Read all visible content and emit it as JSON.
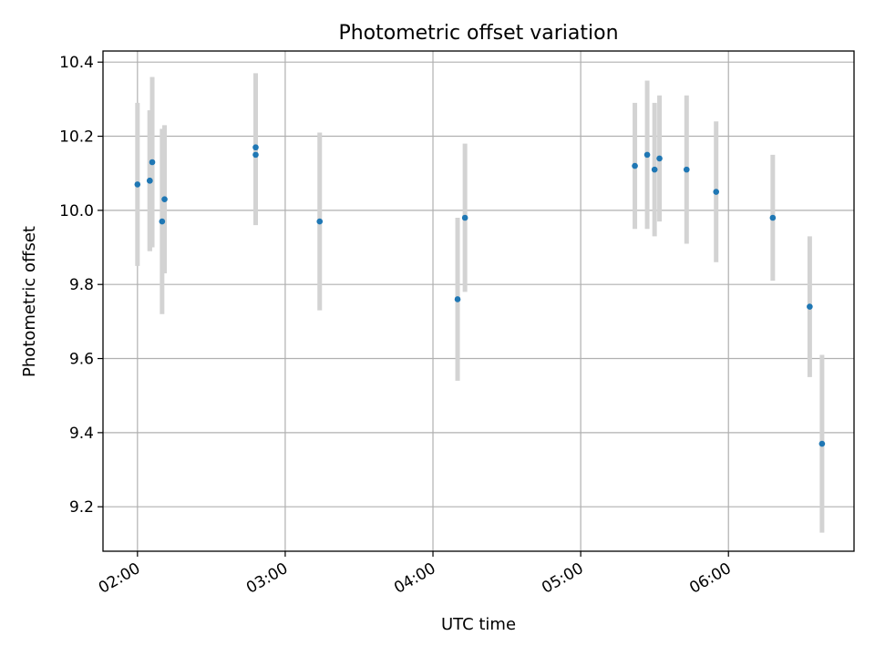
{
  "chart_data": {
    "type": "scatter",
    "title": "Photometric offset variation",
    "xlabel": "UTC time",
    "ylabel": "Photometric offset",
    "x_tick_labels": [
      "02:00",
      "03:00",
      "04:00",
      "05:00",
      "06:00"
    ],
    "y_tick_labels": [
      "9.2",
      "9.4",
      "9.6",
      "9.8",
      "10.0",
      "10.2",
      "10.4"
    ],
    "x_ticks": [
      "02:00",
      "03:00",
      "04:00",
      "05:00",
      "06:00"
    ],
    "y_ticks": [
      9.2,
      9.4,
      9.6,
      9.8,
      10.0,
      10.2,
      10.4
    ],
    "xlim": [
      "01:46",
      "06:51"
    ],
    "ylim": [
      9.08,
      10.43
    ],
    "grid": true,
    "colors": {
      "marker": "#1f77b4",
      "errorbar": "#d3d3d3",
      "grid": "#b0b0b0"
    },
    "series": [
      {
        "x": [
          "02:00",
          "02:05",
          "02:05",
          "02:06",
          "02:10",
          "02:11",
          "02:48",
          "02:48",
          "03:14",
          "04:10",
          "04:13",
          "05:22",
          "05:27",
          "05:30",
          "05:32",
          "05:43",
          "05:55",
          "06:18",
          "06:33",
          "06:38"
        ],
        "y": [
          10.07,
          10.08,
          10.08,
          10.13,
          9.97,
          10.03,
          10.15,
          10.17,
          9.97,
          9.76,
          9.98,
          10.12,
          10.15,
          10.11,
          10.14,
          10.11,
          10.05,
          9.98,
          9.74,
          9.37
        ],
        "yerr": [
          0.22,
          0.19,
          0.19,
          0.23,
          0.25,
          0.2,
          0.19,
          0.2,
          0.24,
          0.22,
          0.2,
          0.17,
          0.2,
          0.18,
          0.17,
          0.2,
          0.19,
          0.17,
          0.19,
          0.24
        ]
      }
    ]
  }
}
